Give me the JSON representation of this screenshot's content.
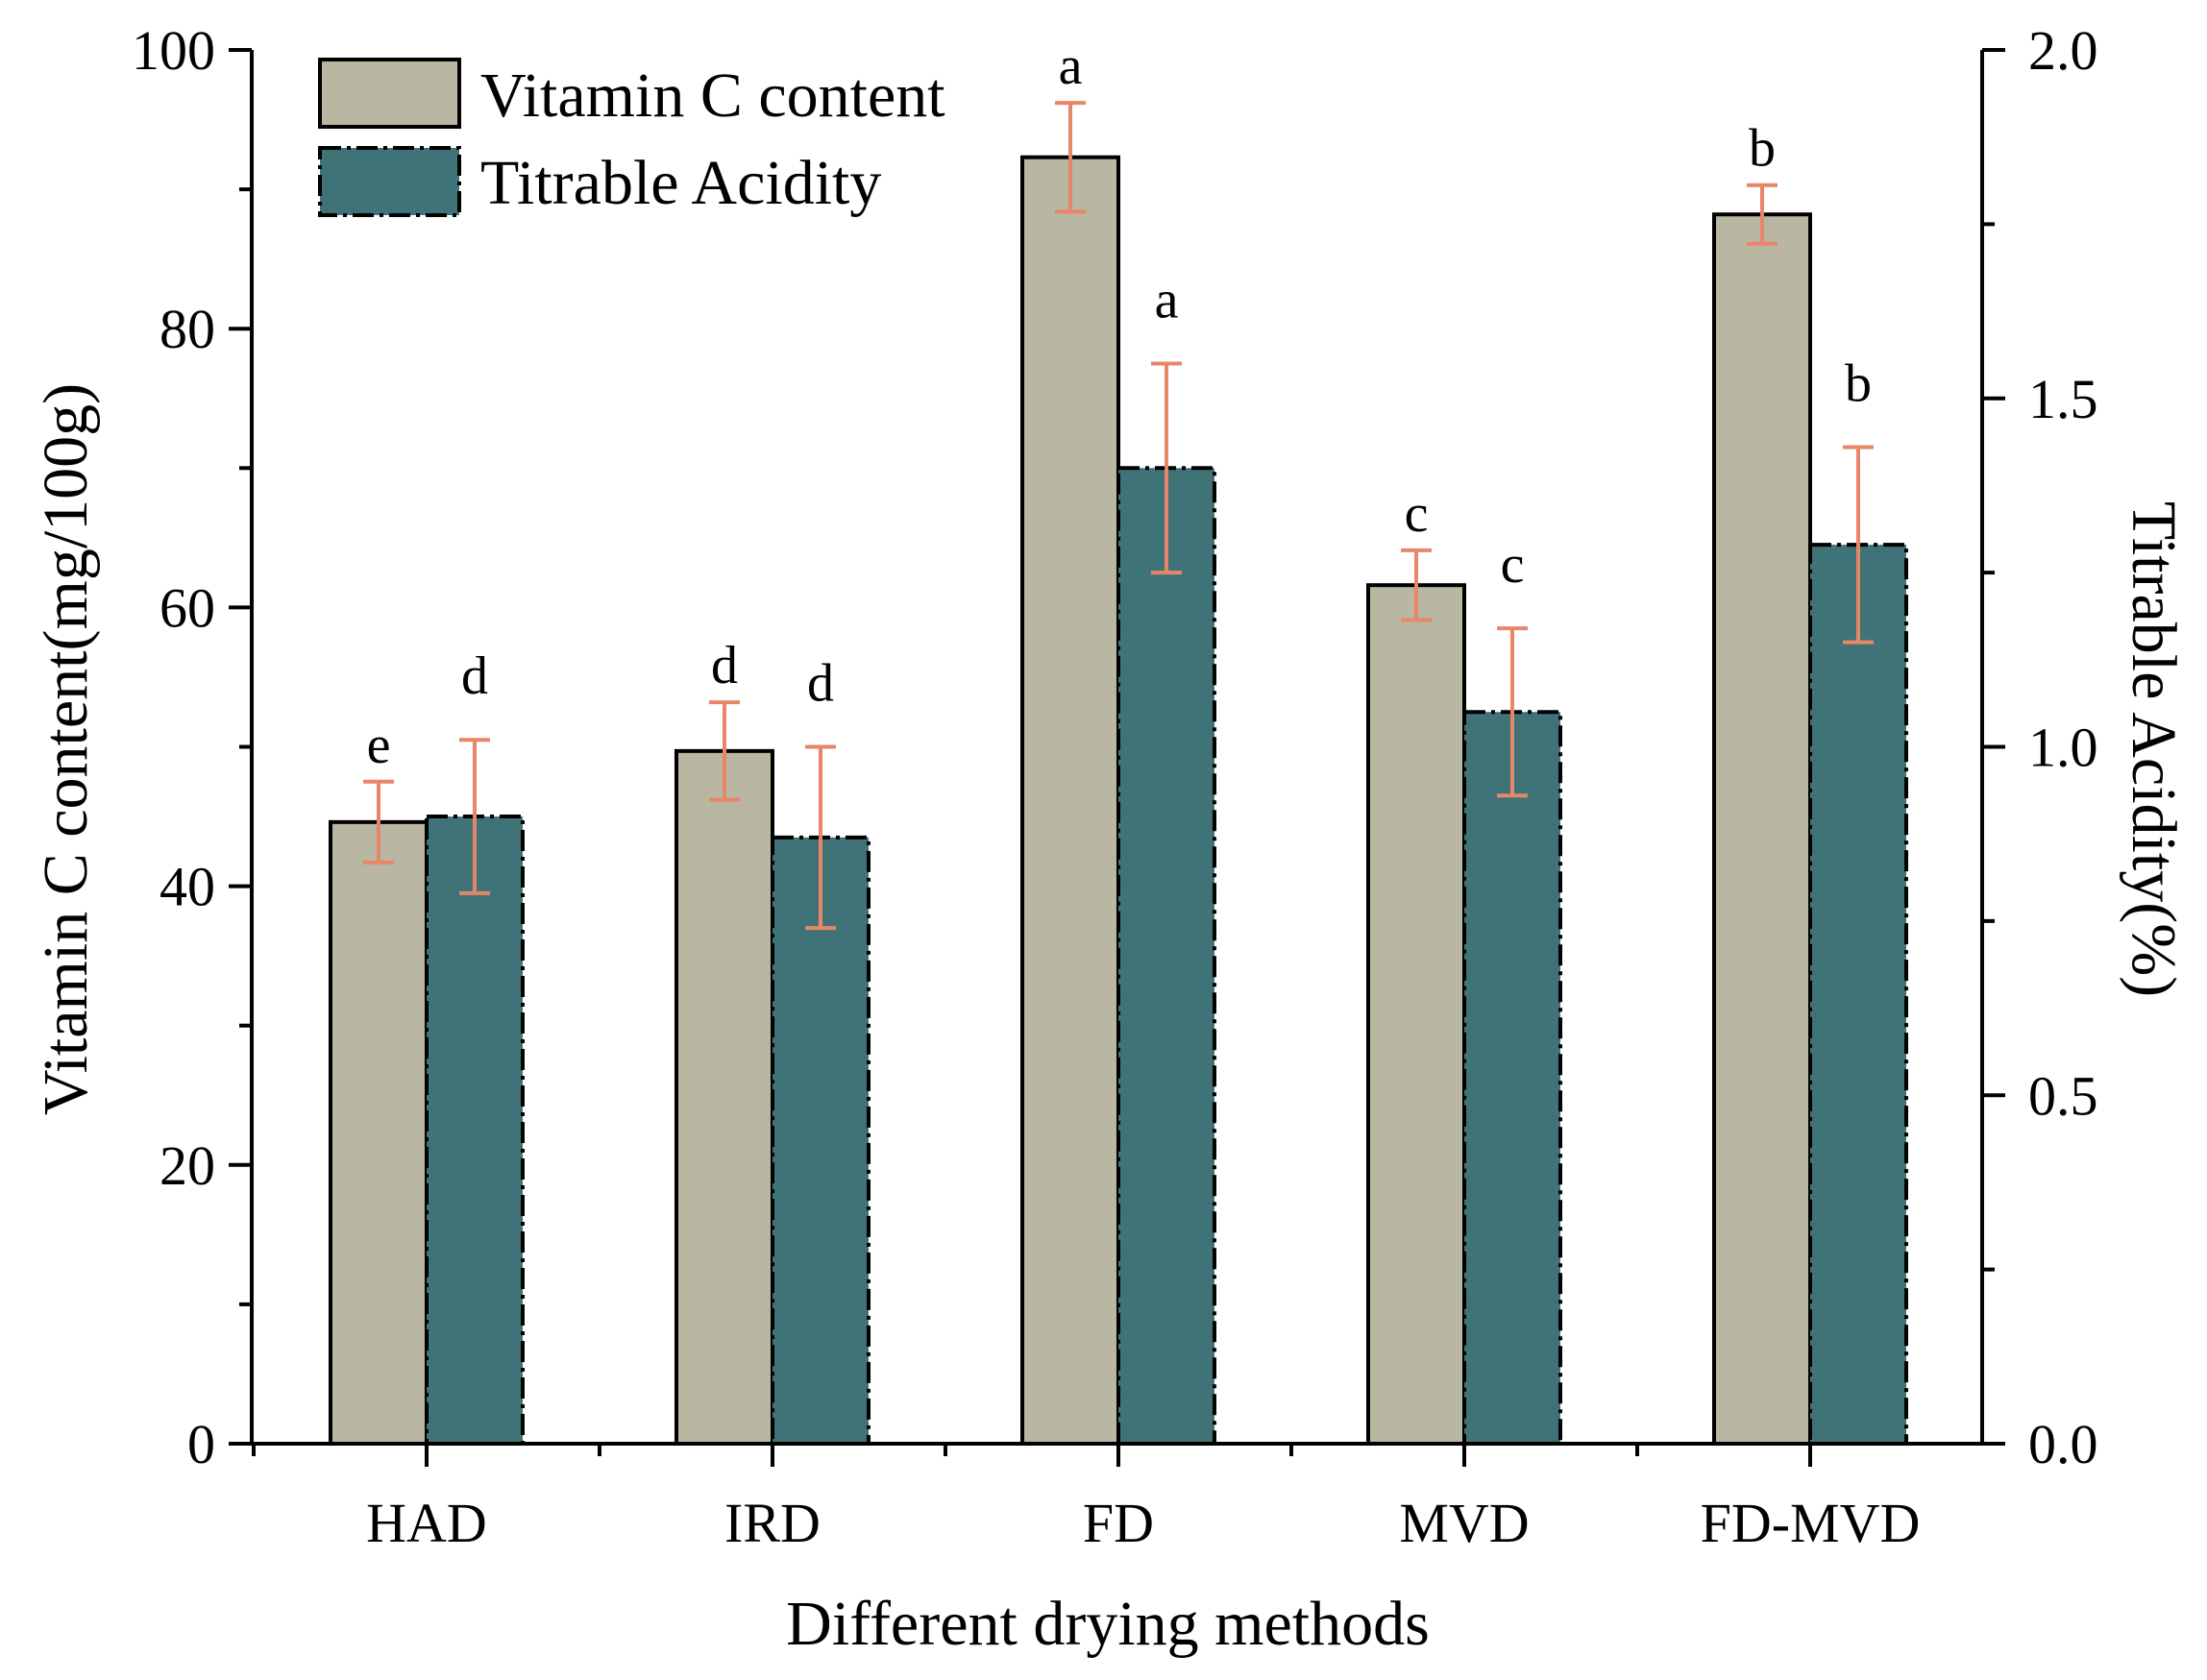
{
  "chart_data": {
    "type": "bar",
    "xlabel": "Different drying methods",
    "ylabel_left": "Vitamin C content(mg/100g)",
    "ylabel_right": "Titrable Acidity(%)",
    "categories": [
      "HAD",
      "IRD",
      "FD",
      "MVD",
      "FD-MVD"
    ],
    "left_axis": {
      "ylim": [
        0,
        100
      ],
      "ticks": [
        "0",
        "20",
        "40",
        "60",
        "80",
        "100"
      ]
    },
    "right_axis": {
      "ylim": [
        0,
        2.0
      ],
      "ticks": [
        "0.0",
        "0.5",
        "1.0",
        "1.5",
        "2.0"
      ]
    },
    "series": [
      {
        "name": "Vitamin C content",
        "axis": "left",
        "values": [
          44.6,
          49.7,
          92.3,
          61.6,
          88.2
        ],
        "errors": [
          2.9,
          3.5,
          3.9,
          2.5,
          2.1
        ],
        "letters": [
          "e",
          "d",
          "a",
          "c",
          "b"
        ],
        "color": "#b9b7a1"
      },
      {
        "name": "Titrable Acidity",
        "axis": "right",
        "values": [
          0.9,
          0.87,
          1.4,
          1.05,
          1.29
        ],
        "errors": [
          0.11,
          0.13,
          0.15,
          0.12,
          0.14
        ],
        "letters": [
          "d",
          "d",
          "a",
          "c",
          "b"
        ],
        "color": "#3f7378"
      }
    ],
    "errorbar_color": "#e8866a",
    "legend": {
      "position": "top-left",
      "entries": [
        "Vitamin C content",
        "Titrable Acidity"
      ]
    }
  }
}
